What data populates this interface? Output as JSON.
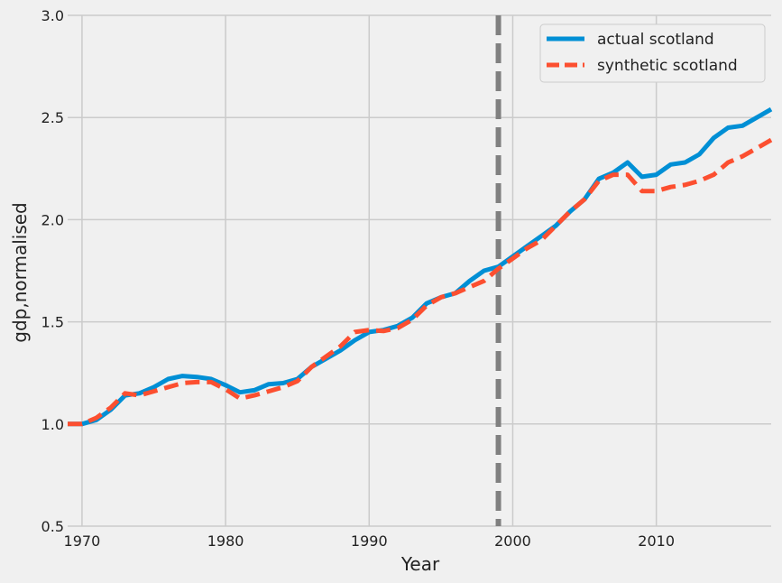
{
  "chart_data": {
    "type": "line",
    "title": "",
    "xlabel": "Year",
    "ylabel": "gdp,normalised",
    "xlim": [
      1969,
      2018
    ],
    "ylim": [
      0.5,
      3.0
    ],
    "x_ticks": [
      1970,
      1980,
      1990,
      2000,
      2010
    ],
    "x_tick_labels": [
      "1970",
      "1980",
      "1990",
      "2000",
      "2010"
    ],
    "y_ticks": [
      0.5,
      1.0,
      1.5,
      2.0,
      2.5,
      3.0
    ],
    "y_tick_labels": [
      "0.5",
      "1.0",
      "1.5",
      "2.0",
      "2.5",
      "3.0"
    ],
    "grid": true,
    "legend_position": "top-right",
    "treatment_year": 1999,
    "treatment_line_color": "#808080",
    "x": [
      1969,
      1970,
      1971,
      1972,
      1973,
      1974,
      1975,
      1976,
      1977,
      1978,
      1979,
      1980,
      1981,
      1982,
      1983,
      1984,
      1985,
      1986,
      1987,
      1988,
      1989,
      1990,
      1991,
      1992,
      1993,
      1994,
      1995,
      1996,
      1997,
      1998,
      1999,
      2000,
      2001,
      2002,
      2003,
      2004,
      2005,
      2006,
      2007,
      2008,
      2009,
      2010,
      2011,
      2012,
      2013,
      2014,
      2015,
      2016,
      2017,
      2018
    ],
    "series": [
      {
        "name": "actual scotland",
        "color": "#008fd5",
        "style": "solid",
        "values": [
          1.0,
          1.0,
          1.02,
          1.07,
          1.14,
          1.15,
          1.18,
          1.22,
          1.235,
          1.23,
          1.22,
          1.19,
          1.155,
          1.165,
          1.195,
          1.2,
          1.22,
          1.28,
          1.32,
          1.36,
          1.41,
          1.45,
          1.46,
          1.48,
          1.52,
          1.59,
          1.62,
          1.64,
          1.7,
          1.75,
          1.77,
          1.82,
          1.87,
          1.92,
          1.97,
          2.04,
          2.1,
          2.2,
          2.23,
          2.28,
          2.21,
          2.22,
          2.27,
          2.28,
          2.32,
          2.4,
          2.45,
          2.46,
          2.5,
          2.54
        ]
      },
      {
        "name": "synthetic scotland",
        "color": "#fc4f30",
        "style": "dashed",
        "values": [
          1.0,
          1.0,
          1.03,
          1.08,
          1.15,
          1.14,
          1.16,
          1.18,
          1.2,
          1.205,
          1.205,
          1.17,
          1.125,
          1.14,
          1.16,
          1.18,
          1.21,
          1.28,
          1.33,
          1.38,
          1.45,
          1.46,
          1.455,
          1.47,
          1.51,
          1.58,
          1.62,
          1.64,
          1.67,
          1.7,
          1.76,
          1.81,
          1.86,
          1.9,
          1.97,
          2.04,
          2.1,
          2.19,
          2.22,
          2.22,
          2.14,
          2.14,
          2.16,
          2.17,
          2.19,
          2.22,
          2.28,
          2.31,
          2.35,
          2.39
        ]
      }
    ]
  }
}
